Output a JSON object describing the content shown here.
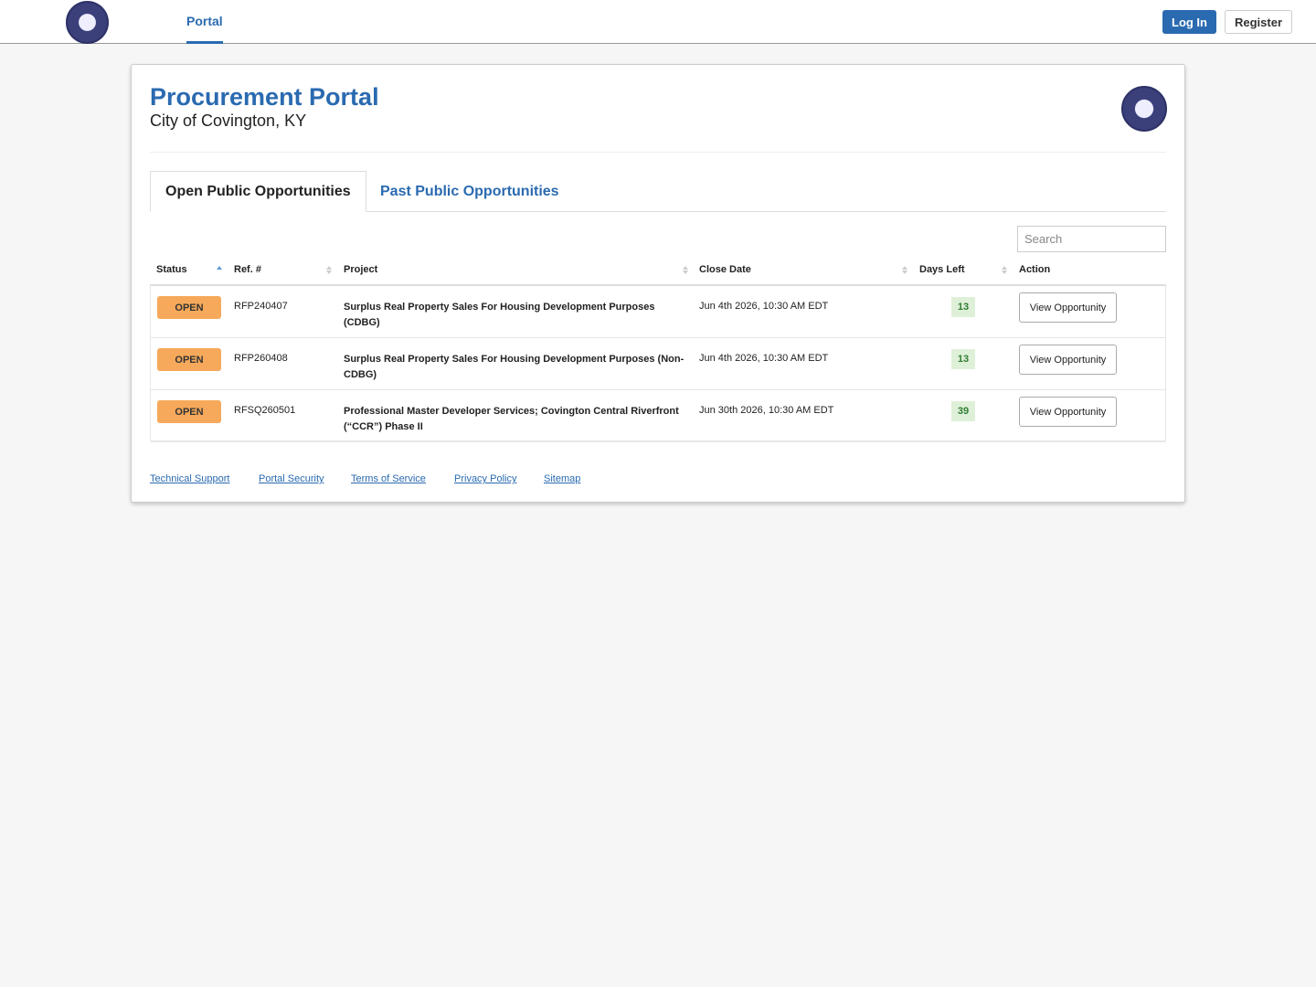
{
  "nav": {
    "portal_link": "Portal",
    "login": "Log In",
    "register": "Register"
  },
  "header": {
    "title": "Procurement Portal",
    "subtitle": "City of Covington, KY"
  },
  "tabs": [
    "Open Public Opportunities",
    "Past Public Opportunities"
  ],
  "search_placeholder": "Search",
  "table": {
    "columns": [
      "Status",
      "Ref. #",
      "Project",
      "Close Date",
      "Days Left",
      "Action"
    ],
    "rows": [
      {
        "status": "OPEN",
        "ref": "RFP240407",
        "project": "Surplus Real Property Sales For Housing Development Purposes (CDBG)",
        "close_date": "Jun 4th 2026, 10:30 AM EDT",
        "days_left": 13,
        "action": "View Opportunity"
      },
      {
        "status": "OPEN",
        "ref": "RFP260408",
        "project": "Surplus Real Property Sales For Housing Development Purposes (Non-CDBG)",
        "close_date": "Jun 4th 2026, 10:30 AM EDT",
        "days_left": 13,
        "action": "View Opportunity"
      },
      {
        "status": "OPEN",
        "ref": "RFSQ260501",
        "project": "Professional Master Developer Services; Covington Central Riverfront (“CCR”) Phase II",
        "close_date": "Jun 30th 2026, 10:30 AM EDT",
        "days_left": 39,
        "action": "View Opportunity"
      }
    ]
  },
  "footer": {
    "links": [
      "Technical Support",
      "Portal Security",
      "Terms of Service",
      "Privacy Policy",
      "Sitemap"
    ]
  }
}
